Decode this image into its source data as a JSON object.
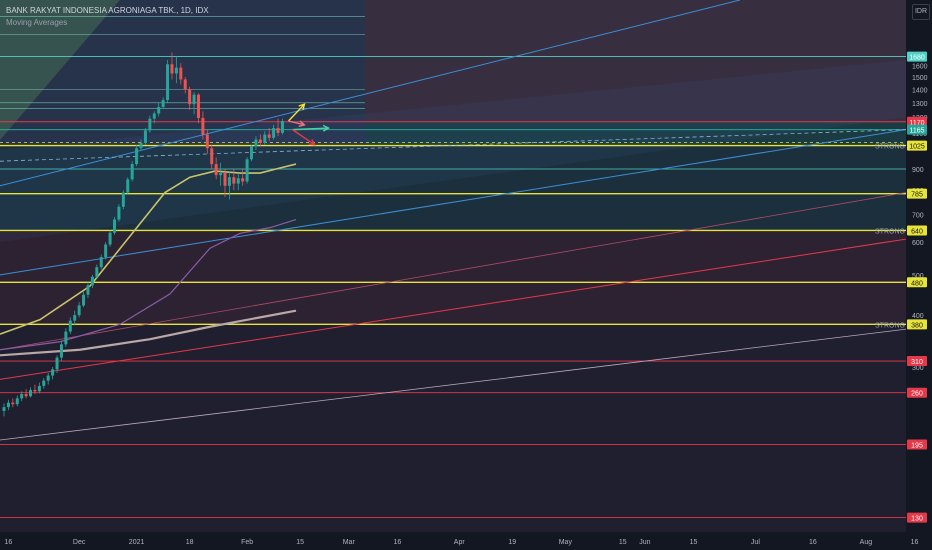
{
  "header": {
    "title": "BANK RAKYAT INDONESIA AGRONIAGA TBK., 1D, IDX",
    "indicator": "Moving Averages",
    "currency": "IDR"
  },
  "colors": {
    "background": "#131722",
    "candle_up": "#26a69a",
    "candle_down": "#ef5350",
    "level_yellow": "#e8e337",
    "level_cyan": "#4fd1c5",
    "level_red": "#e5394a",
    "trend_blue": "#3c8fd6",
    "ma_fast": "#c9c46a",
    "ma_mid": "#8a5ca6",
    "ma_slow": "#b9a8a6"
  },
  "chart_data": {
    "type": "candlestick",
    "symbol": "BANK RAKYAT INDONESIA AGRONIAGA TBK.",
    "interval": "1D",
    "exchange": "IDX",
    "y_scale": "log",
    "ylim": [
      120,
      2300
    ],
    "y_ticks": [
      1600,
      1500,
      1400,
      1300,
      1200,
      1100,
      900,
      800,
      700,
      600,
      500,
      400,
      300
    ],
    "x_tick_labels": [
      "16",
      "Dec",
      "2021",
      "18",
      "Feb",
      "15",
      "Mar",
      "16",
      "Apr",
      "19",
      "May",
      "15",
      "Jun",
      "15",
      "Jul",
      "16",
      "Aug",
      "16"
    ],
    "x_tick_index": [
      1,
      17,
      30,
      42,
      55,
      67,
      78,
      89,
      103,
      115,
      127,
      140,
      145,
      156,
      170,
      183,
      195,
      206
    ],
    "candles": [
      {
        "o": 235,
        "h": 245,
        "l": 228,
        "c": 240
      },
      {
        "o": 240,
        "h": 250,
        "l": 236,
        "c": 246
      },
      {
        "o": 246,
        "h": 252,
        "l": 240,
        "c": 244
      },
      {
        "o": 244,
        "h": 256,
        "l": 241,
        "c": 252
      },
      {
        "o": 252,
        "h": 262,
        "l": 248,
        "c": 258
      },
      {
        "o": 258,
        "h": 265,
        "l": 252,
        "c": 255
      },
      {
        "o": 255,
        "h": 268,
        "l": 253,
        "c": 264
      },
      {
        "o": 264,
        "h": 272,
        "l": 258,
        "c": 262
      },
      {
        "o": 262,
        "h": 275,
        "l": 259,
        "c": 270
      },
      {
        "o": 270,
        "h": 282,
        "l": 266,
        "c": 278
      },
      {
        "o": 278,
        "h": 290,
        "l": 272,
        "c": 286
      },
      {
        "o": 286,
        "h": 300,
        "l": 280,
        "c": 296
      },
      {
        "o": 296,
        "h": 320,
        "l": 290,
        "c": 316
      },
      {
        "o": 316,
        "h": 345,
        "l": 310,
        "c": 340
      },
      {
        "o": 340,
        "h": 372,
        "l": 335,
        "c": 365
      },
      {
        "o": 365,
        "h": 395,
        "l": 360,
        "c": 388
      },
      {
        "o": 388,
        "h": 410,
        "l": 378,
        "c": 400
      },
      {
        "o": 400,
        "h": 430,
        "l": 395,
        "c": 422
      },
      {
        "o": 422,
        "h": 455,
        "l": 418,
        "c": 448
      },
      {
        "o": 448,
        "h": 480,
        "l": 440,
        "c": 472
      },
      {
        "o": 472,
        "h": 500,
        "l": 465,
        "c": 495
      },
      {
        "o": 495,
        "h": 530,
        "l": 490,
        "c": 522
      },
      {
        "o": 522,
        "h": 560,
        "l": 515,
        "c": 552
      },
      {
        "o": 552,
        "h": 600,
        "l": 545,
        "c": 592
      },
      {
        "o": 592,
        "h": 640,
        "l": 585,
        "c": 632
      },
      {
        "o": 632,
        "h": 690,
        "l": 625,
        "c": 680
      },
      {
        "o": 680,
        "h": 740,
        "l": 672,
        "c": 730
      },
      {
        "o": 730,
        "h": 800,
        "l": 720,
        "c": 790
      },
      {
        "o": 790,
        "h": 860,
        "l": 780,
        "c": 850
      },
      {
        "o": 850,
        "h": 940,
        "l": 840,
        "c": 925
      },
      {
        "o": 925,
        "h": 1030,
        "l": 915,
        "c": 1010
      },
      {
        "o": 1010,
        "h": 1060,
        "l": 1000,
        "c": 1040
      },
      {
        "o": 1040,
        "h": 1130,
        "l": 1030,
        "c": 1115
      },
      {
        "o": 1115,
        "h": 1210,
        "l": 1100,
        "c": 1190
      },
      {
        "o": 1190,
        "h": 1240,
        "l": 1160,
        "c": 1225
      },
      {
        "o": 1225,
        "h": 1300,
        "l": 1205,
        "c": 1270
      },
      {
        "o": 1270,
        "h": 1340,
        "l": 1255,
        "c": 1320
      },
      {
        "o": 1320,
        "h": 1650,
        "l": 1300,
        "c": 1610
      },
      {
        "o": 1610,
        "h": 1720,
        "l": 1480,
        "c": 1530
      },
      {
        "o": 1530,
        "h": 1680,
        "l": 1450,
        "c": 1580
      },
      {
        "o": 1580,
        "h": 1620,
        "l": 1440,
        "c": 1480
      },
      {
        "o": 1480,
        "h": 1500,
        "l": 1370,
        "c": 1400
      },
      {
        "o": 1400,
        "h": 1420,
        "l": 1250,
        "c": 1290
      },
      {
        "o": 1290,
        "h": 1380,
        "l": 1220,
        "c": 1360
      },
      {
        "o": 1360,
        "h": 1370,
        "l": 1160,
        "c": 1195
      },
      {
        "o": 1195,
        "h": 1240,
        "l": 1060,
        "c": 1090
      },
      {
        "o": 1090,
        "h": 1120,
        "l": 980,
        "c": 1010
      },
      {
        "o": 1010,
        "h": 1030,
        "l": 900,
        "c": 925
      },
      {
        "o": 925,
        "h": 960,
        "l": 850,
        "c": 870
      },
      {
        "o": 870,
        "h": 930,
        "l": 820,
        "c": 880
      },
      {
        "o": 880,
        "h": 900,
        "l": 770,
        "c": 820
      },
      {
        "o": 820,
        "h": 890,
        "l": 760,
        "c": 860
      },
      {
        "o": 860,
        "h": 900,
        "l": 800,
        "c": 830
      },
      {
        "o": 830,
        "h": 880,
        "l": 800,
        "c": 855
      },
      {
        "o": 855,
        "h": 900,
        "l": 820,
        "c": 840
      },
      {
        "o": 840,
        "h": 960,
        "l": 830,
        "c": 950
      },
      {
        "o": 950,
        "h": 1030,
        "l": 940,
        "c": 1020
      },
      {
        "o": 1020,
        "h": 1080,
        "l": 1000,
        "c": 1060
      },
      {
        "o": 1060,
        "h": 1090,
        "l": 1020,
        "c": 1040
      },
      {
        "o": 1040,
        "h": 1110,
        "l": 1030,
        "c": 1090
      },
      {
        "o": 1090,
        "h": 1130,
        "l": 1050,
        "c": 1070
      },
      {
        "o": 1070,
        "h": 1150,
        "l": 1060,
        "c": 1130
      },
      {
        "o": 1130,
        "h": 1190,
        "l": 1080,
        "c": 1100
      },
      {
        "o": 1100,
        "h": 1190,
        "l": 1090,
        "c": 1175
      }
    ],
    "price_levels": [
      {
        "label": "1680",
        "value": 1680,
        "color": "#4fd1c5"
      },
      {
        "label": "1170",
        "value": 1170,
        "color": "#e5394a"
      },
      {
        "label": "1165",
        "value": 1120,
        "color": "#26a69a"
      },
      {
        "label": "1025",
        "value": 1025,
        "color": "#e8e337"
      },
      {
        "label": "785",
        "value": 785,
        "color": "#e8e337"
      },
      {
        "label": "640",
        "value": 640,
        "color": "#e8e337"
      },
      {
        "label": "480",
        "value": 480,
        "color": "#e8e337"
      },
      {
        "label": "380",
        "value": 380,
        "color": "#e8e337"
      },
      {
        "label": "310",
        "value": 310,
        "color": "#e5394a"
      },
      {
        "label": "260",
        "value": 260,
        "color": "#e5394a"
      },
      {
        "label": "195",
        "value": 195,
        "color": "#e5394a"
      },
      {
        "label": "130",
        "value": 130,
        "color": "#e5394a"
      }
    ],
    "zone_labels": [
      {
        "text": "STRONG",
        "value": 1025
      },
      {
        "text": "STRONG",
        "value": 640
      },
      {
        "text": "STRONG",
        "value": 380
      }
    ]
  }
}
